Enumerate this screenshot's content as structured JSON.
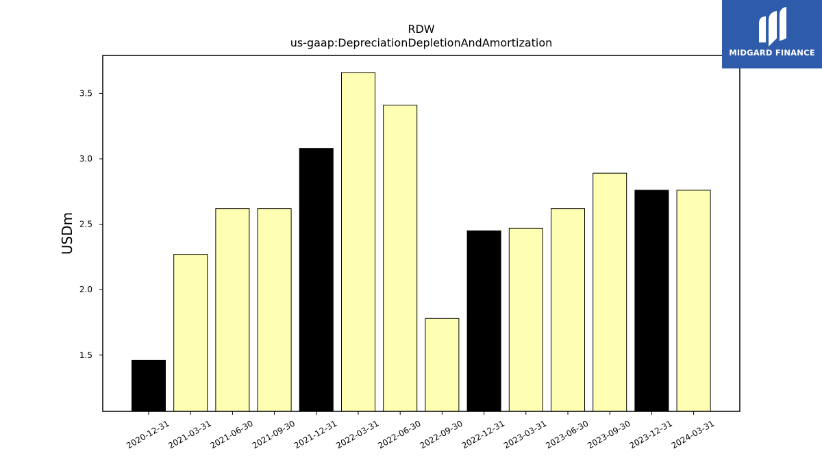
{
  "chart_data": {
    "type": "bar",
    "title": "RDW",
    "subtitle": "us-gaap:DepreciationDepletionAndAmortization",
    "ylabel": "USDm",
    "xlabel": "",
    "categories": [
      "2020-12-31",
      "2021-03-31",
      "2021-06-30",
      "2021-09-30",
      "2021-12-31",
      "2022-03-31",
      "2022-06-30",
      "2022-09-30",
      "2022-12-31",
      "2023-03-31",
      "2023-06-30",
      "2023-09-30",
      "2023-12-31",
      "2024-03-31"
    ],
    "values": [
      1.46,
      2.27,
      2.62,
      2.62,
      3.08,
      3.66,
      3.41,
      1.78,
      2.45,
      2.47,
      2.62,
      2.89,
      2.76,
      2.76
    ],
    "bar_colors": [
      "#000000",
      "#ffffb3",
      "#ffffb3",
      "#ffffb3",
      "#000000",
      "#ffffb3",
      "#ffffb3",
      "#ffffb3",
      "#000000",
      "#ffffb3",
      "#ffffb3",
      "#ffffb3",
      "#000000",
      "#ffffb3"
    ],
    "ylim": [
      1.07,
      3.79
    ],
    "yticks": [
      "1.5",
      "2.0",
      "2.5",
      "3.0",
      "3.5"
    ],
    "grid": false
  },
  "logo": {
    "text": "MIDGARD FINANCE",
    "background": "#2f5bab"
  }
}
